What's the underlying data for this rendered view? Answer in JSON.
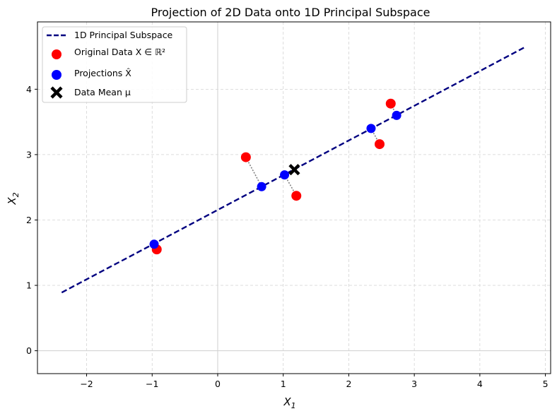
{
  "chart_data": {
    "type": "scatter",
    "title": "Projection of 2D Data onto 1D Principal Subspace",
    "xlabel": "X",
    "xlabel_sub": "1",
    "ylabel": "X",
    "ylabel_sub": "2",
    "xlim": [
      -2.75,
      5.08
    ],
    "ylim": [
      -0.35,
      5.03
    ],
    "xticks": [
      -2,
      -1,
      0,
      1,
      2,
      3,
      4,
      5
    ],
    "xtick_labels": [
      "−2",
      "−1",
      "0",
      "1",
      "2",
      "3",
      "4",
      "5"
    ],
    "yticks": [
      0,
      1,
      2,
      3,
      4
    ],
    "ytick_labels": [
      "0",
      "1",
      "2",
      "3",
      "4"
    ],
    "grid": true,
    "legend_position": "top-left",
    "colors": {
      "principal_line": "#000080",
      "original": "#ff0000",
      "projection": "#0000ff",
      "mean": "#000000",
      "connector": "#808080",
      "grid": "#d3d3d3"
    },
    "principal_line": {
      "name": "1D Principal Subspace",
      "start": [
        -2.38,
        0.89
      ],
      "end": [
        4.7,
        4.65
      ]
    },
    "original": {
      "name": "Original Data X ∈ ℝ²",
      "points": [
        [
          -0.93,
          1.55
        ],
        [
          0.43,
          2.96
        ],
        [
          1.2,
          2.37
        ],
        [
          2.47,
          3.16
        ],
        [
          2.64,
          3.78
        ]
      ]
    },
    "projections": {
      "name": "Projections X̂",
      "points": [
        [
          -0.97,
          1.63
        ],
        [
          0.67,
          2.51
        ],
        [
          1.02,
          2.69
        ],
        [
          2.34,
          3.4
        ],
        [
          2.73,
          3.6
        ]
      ]
    },
    "mean": {
      "name": "Data Mean μ",
      "point": [
        1.17,
        2.77
      ]
    },
    "legend": [
      {
        "label": "1D Principal Subspace",
        "marker": "dashed-line"
      },
      {
        "label": "Original Data X ∈ ℝ²",
        "marker": "red-circle"
      },
      {
        "label": "Projections X̂",
        "marker": "blue-circle"
      },
      {
        "label": "Data Mean μ",
        "marker": "black-x"
      }
    ]
  }
}
